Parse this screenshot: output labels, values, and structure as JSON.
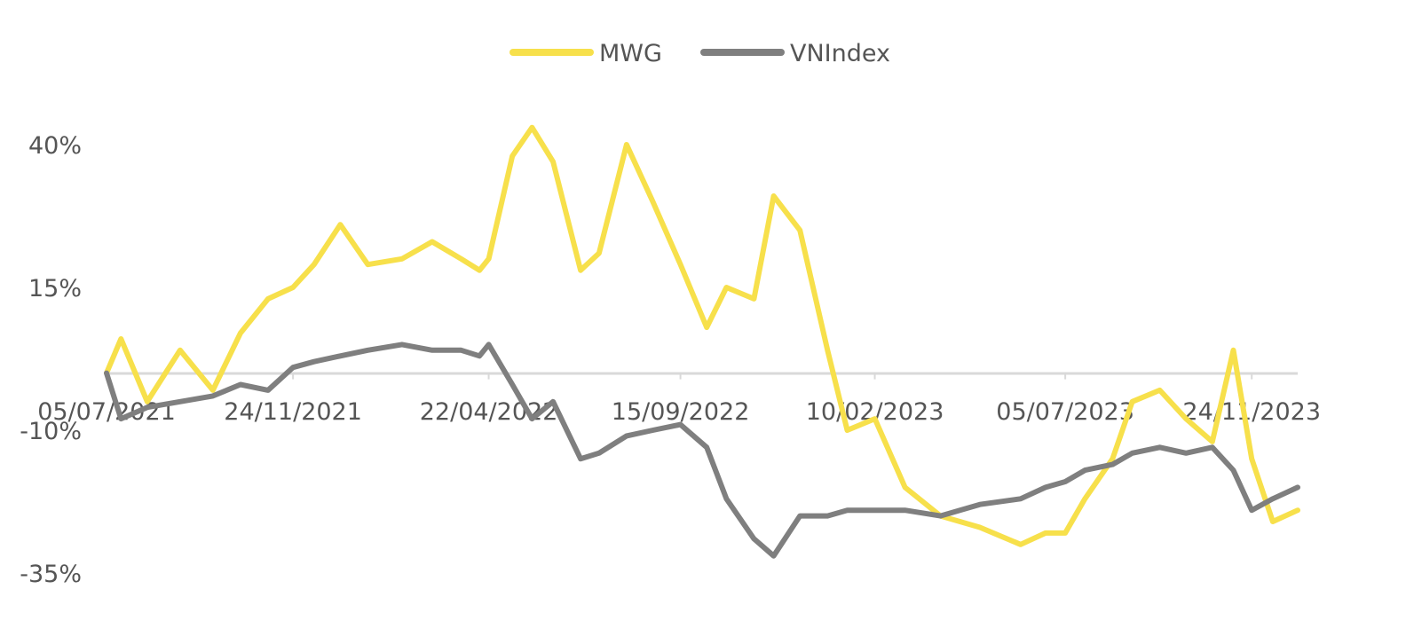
{
  "chart_data": {
    "type": "line",
    "title": "",
    "xlabel": "",
    "ylabel": "",
    "x_ticks": [
      "05/07/2021",
      "24/11/2021",
      "22/04/2022",
      "15/09/2022",
      "10/02/2023",
      "05/07/2023",
      "24/11/2023"
    ],
    "y_ticks": [
      "40%",
      "15%",
      "-10%",
      "-35%"
    ],
    "ylim": [
      -35,
      45
    ],
    "grid": false,
    "legend": "top-center",
    "colors": {
      "MWG": "#F7E04B",
      "VNIndex": "#7F7F7F",
      "axis": "#D9D9D9",
      "text": "#555555"
    },
    "series": [
      {
        "name": "MWG",
        "x": [
          "05/07/2021",
          "16/07/2021",
          "05/08/2021",
          "30/08/2021",
          "24/09/2021",
          "15/10/2021",
          "05/11/2021",
          "24/11/2021",
          "10/12/2021",
          "30/12/2021",
          "20/01/2022",
          "15/02/2022",
          "10/03/2022",
          "01/04/2022",
          "15/04/2022",
          "22/04/2022",
          "10/05/2022",
          "25/05/2022",
          "10/06/2022",
          "01/07/2022",
          "15/07/2022",
          "05/08/2022",
          "25/08/2022",
          "15/09/2022",
          "05/10/2022",
          "20/10/2022",
          "10/11/2022",
          "25/11/2022",
          "15/12/2022",
          "05/01/2023",
          "20/01/2023",
          "10/02/2023",
          "05/03/2023",
          "01/04/2023",
          "01/05/2023",
          "01/06/2023",
          "20/06/2023",
          "05/07/2023",
          "20/07/2023",
          "10/08/2023",
          "25/08/2023",
          "15/09/2023",
          "05/10/2023",
          "25/10/2023",
          "10/11/2023",
          "24/11/2023",
          "10/12/2023",
          "29/12/2023"
        ],
        "values": [
          0,
          6,
          -5,
          4,
          -3,
          7,
          13,
          15,
          19,
          26,
          19,
          20,
          23,
          20,
          18,
          20,
          38,
          43,
          37,
          18,
          21,
          40,
          30,
          19,
          8,
          15,
          13,
          31,
          25,
          4,
          -10,
          -8,
          -20,
          -25,
          -27,
          -30,
          -28,
          -28,
          -22,
          -15,
          -5,
          -3,
          -8,
          -12,
          4,
          -15,
          -26,
          -24
        ]
      },
      {
        "name": "VNIndex",
        "x": [
          "05/07/2021",
          "16/07/2021",
          "05/08/2021",
          "30/08/2021",
          "24/09/2021",
          "15/10/2021",
          "05/11/2021",
          "24/11/2021",
          "10/12/2021",
          "30/12/2021",
          "20/01/2022",
          "15/02/2022",
          "10/03/2022",
          "01/04/2022",
          "15/04/2022",
          "22/04/2022",
          "10/05/2022",
          "25/05/2022",
          "10/06/2022",
          "01/07/2022",
          "15/07/2022",
          "05/08/2022",
          "25/08/2022",
          "15/09/2022",
          "05/10/2022",
          "20/10/2022",
          "10/11/2022",
          "25/11/2022",
          "15/12/2022",
          "05/01/2023",
          "20/01/2023",
          "10/02/2023",
          "05/03/2023",
          "01/04/2023",
          "01/05/2023",
          "01/06/2023",
          "20/06/2023",
          "05/07/2023",
          "20/07/2023",
          "10/08/2023",
          "25/08/2023",
          "15/09/2023",
          "05/10/2023",
          "25/10/2023",
          "10/11/2023",
          "24/11/2023",
          "10/12/2023",
          "29/12/2023"
        ],
        "values": [
          0,
          -8,
          -6,
          -5,
          -4,
          -2,
          -3,
          1,
          2,
          3,
          4,
          5,
          4,
          4,
          3,
          5,
          -2,
          -8,
          -5,
          -15,
          -14,
          -11,
          -10,
          -9,
          -13,
          -22,
          -29,
          -32,
          -25,
          -25,
          -24,
          -24,
          -24,
          -25,
          -23,
          -22,
          -20,
          -19,
          -17,
          -16,
          -14,
          -13,
          -14,
          -13,
          -17,
          -24,
          -22,
          -20
        ]
      }
    ]
  }
}
